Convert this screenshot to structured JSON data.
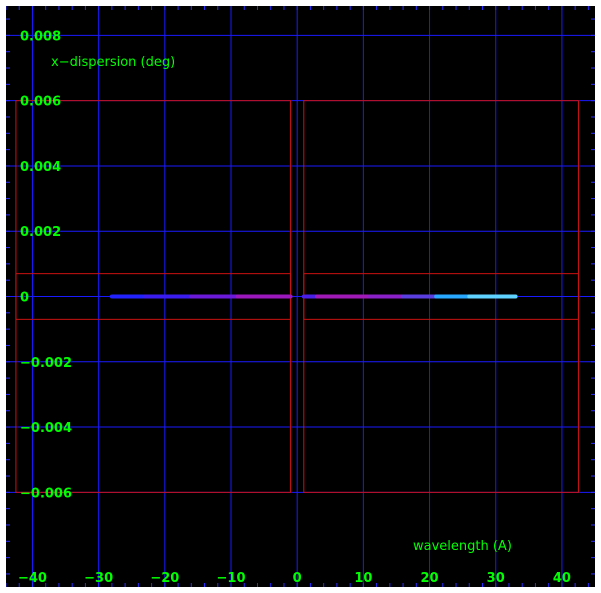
{
  "chart_data": {
    "type": "scatter",
    "title": "",
    "xlabel": "wavelength (A)",
    "ylabel": "x−dispersion (deg)",
    "xlim": [
      -44,
      45
    ],
    "ylim": [
      -0.0089,
      0.0089
    ],
    "x_ticks": [
      -40,
      -30,
      -20,
      -10,
      0,
      10,
      20,
      30,
      40
    ],
    "x_tick_labels": [
      "−40",
      "−30",
      "−20",
      "−10",
      "0",
      "10",
      "20",
      "30",
      "40"
    ],
    "y_ticks": [
      0.008,
      0.006,
      0.004,
      0.002,
      0,
      -0.002,
      -0.004,
      -0.006
    ],
    "y_tick_labels": [
      "0.008",
      "0.006",
      "0.004",
      "0.002",
      "0",
      "−0.002",
      "−0.004",
      "−0.006"
    ],
    "grid": true,
    "colors": {
      "background": "#000000",
      "grid": "#1a1aff",
      "ticks": "#2a2aff",
      "regions": "#cc1111",
      "labels": "#00ff00"
    },
    "regions": [
      {
        "name": "outer-left",
        "x": [
          -42.5,
          -1.0
        ],
        "y": [
          -0.006,
          0.006
        ]
      },
      {
        "name": "outer-right",
        "x": [
          1.0,
          42.5
        ],
        "y": [
          -0.006,
          0.006
        ]
      },
      {
        "name": "inner-left",
        "x": [
          -42.5,
          -1.0
        ],
        "y": [
          -0.0007,
          0.0007
        ]
      },
      {
        "name": "inner-right",
        "x": [
          1.0,
          42.5
        ],
        "y": [
          -0.0007,
          0.0007
        ]
      }
    ],
    "series": [
      {
        "x": [
          -28,
          -23
        ],
        "y": 0,
        "color": "#2222ff"
      },
      {
        "x": [
          -23,
          -16
        ],
        "y": 0,
        "color": "#3a1cf0"
      },
      {
        "x": [
          -16,
          -9
        ],
        "y": 0,
        "color": "#6a1ad8"
      },
      {
        "x": [
          -9,
          -1
        ],
        "y": 0,
        "color": "#9a18bc"
      },
      {
        "x": [
          1,
          3
        ],
        "y": 0,
        "color": "#4a20e8"
      },
      {
        "x": [
          3,
          11
        ],
        "y": 0,
        "color": "#a01ab8"
      },
      {
        "x": [
          11,
          16
        ],
        "y": 0,
        "color": "#8a20c8"
      },
      {
        "x": [
          16,
          21
        ],
        "y": 0,
        "color": "#5a3ee0"
      },
      {
        "x": [
          21,
          26
        ],
        "y": 0,
        "color": "#29a8ff"
      },
      {
        "x": [
          26,
          33
        ],
        "y": 0,
        "color": "#5fd2ff"
      }
    ]
  }
}
